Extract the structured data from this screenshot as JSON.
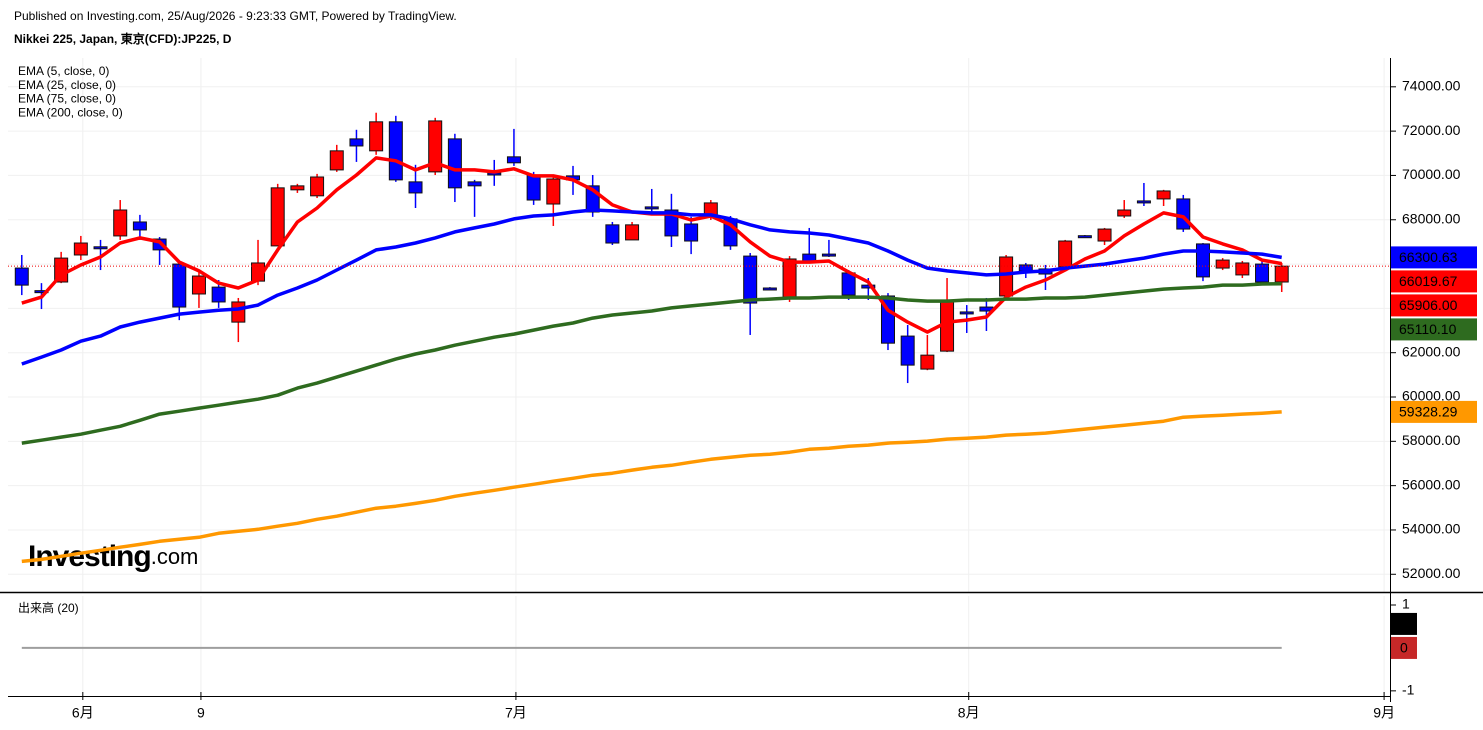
{
  "chart_data": {
    "type": "candlestick",
    "subtitle": "Published on Investing.com, 25/Aug/2026 - 9:23:33 GMT, Powered by TradingView.",
    "title": "Nikkei 225, Japan, 東京(CFD):JP225, D",
    "up_color": "#ff0000",
    "down_color": "#0000ff",
    "open": [
      65820,
      64800,
      65190,
      66410,
      66780,
      67270,
      67900,
      67130,
      66000,
      64650,
      64960,
      63380,
      65230,
      66820,
      69350,
      69080,
      70250,
      71650,
      71110,
      72420,
      69710,
      70160,
      71650,
      69710,
      70110,
      70840,
      70020,
      68710,
      69980,
      69530,
      67770,
      67090,
      68580,
      68440,
      67810,
      68130,
      68040,
      66360,
      64920,
      64510,
      66450,
      66450,
      65600,
      65050,
      64560,
      62750,
      61260,
      62070,
      63840,
      64060,
      64560,
      65960,
      65780,
      65870,
      67280,
      67040,
      68170,
      68850,
      68940,
      68940,
      66910,
      65820,
      65510,
      66000,
      65190
    ],
    "high": [
      66410,
      65140,
      66550,
      67270,
      67090,
      68890,
      68220,
      67220,
      66090,
      65640,
      65280,
      64470,
      67090,
      69620,
      69620,
      70070,
      71380,
      72060,
      72830,
      72690,
      70480,
      72600,
      71880,
      69800,
      70700,
      72100,
      70160,
      70020,
      70430,
      70020,
      67900,
      67900,
      69390,
      69170,
      68130,
      68890,
      68170,
      66500,
      64960,
      66360,
      67630,
      67090,
      65730,
      65370,
      64690,
      63250,
      62800,
      65370,
      64150,
      64470,
      66410,
      66050,
      65960,
      67090,
      67310,
      67630,
      68890,
      69660,
      69350,
      69120,
      66950,
      66270,
      66140,
      66230,
      66050
    ],
    "low": [
      64600,
      63970,
      65140,
      66180,
      65730,
      67090,
      67090,
      65960,
      63470,
      64020,
      64020,
      62480,
      65050,
      66820,
      69210,
      68980,
      70160,
      70610,
      70930,
      69710,
      68530,
      70020,
      68800,
      68130,
      69530,
      70430,
      68670,
      67720,
      69120,
      68130,
      66860,
      67090,
      68350,
      66770,
      66450,
      67990,
      66640,
      62800,
      64870,
      64290,
      66050,
      66320,
      64380,
      64380,
      62120,
      60630,
      61210,
      62030,
      62890,
      62980,
      64470,
      65370,
      64830,
      65730,
      67220,
      66860,
      68080,
      68620,
      68620,
      67450,
      65230,
      65730,
      65370,
      65100,
      64740
    ],
    "close": [
      65050,
      64780,
      66270,
      66950,
      66760,
      68440,
      67540,
      66640,
      64060,
      65460,
      64290,
      64290,
      66050,
      69440,
      69530,
      69930,
      71110,
      71330,
      72420,
      69800,
      69210,
      72460,
      69440,
      69530,
      70090,
      70570,
      68890,
      69840,
      69800,
      68350,
      66950,
      67770,
      68560,
      67270,
      67040,
      68760,
      66820,
      64240,
      64900,
      66230,
      66090,
      66430,
      64600,
      64920,
      62430,
      61440,
      61890,
      64380,
      63820,
      63880,
      66320,
      65690,
      65550,
      67040,
      67260,
      67580,
      68440,
      68830,
      69300,
      67580,
      65420,
      66180,
      66050,
      65190,
      65906
    ],
    "close_label": "65906.00",
    "overlays": [
      {
        "name": "EMA (5, close, 0)",
        "color": "#ff0000",
        "last_label": "66019.67",
        "values": [
          64240,
          64510,
          65510,
          65960,
          66320,
          66950,
          67180,
          67000,
          66090,
          65690,
          65140,
          64920,
          65280,
          66640,
          67900,
          68530,
          69350,
          70020,
          70790,
          70660,
          70250,
          70570,
          70250,
          70250,
          70160,
          70300,
          69980,
          69980,
          69800,
          69350,
          68670,
          68350,
          68260,
          68260,
          67990,
          68170,
          67770,
          67000,
          66360,
          66090,
          66090,
          66140,
          65640,
          65190,
          63920,
          63380,
          62930,
          63380,
          63470,
          63610,
          64510,
          64960,
          65280,
          65730,
          66230,
          66590,
          67270,
          67810,
          68310,
          68130,
          67220,
          66910,
          66640,
          66180,
          66019.67
        ]
      },
      {
        "name": "EMA (25, close, 0)",
        "color": "#0000ff",
        "last_label": "66300.63",
        "values": [
          61490,
          61800,
          62120,
          62520,
          62750,
          63160,
          63380,
          63560,
          63740,
          63830,
          63920,
          63970,
          64150,
          64600,
          64920,
          65280,
          65730,
          66180,
          66640,
          66770,
          66950,
          67180,
          67450,
          67630,
          67810,
          68040,
          68170,
          68220,
          68350,
          68440,
          68400,
          68350,
          68310,
          68310,
          68220,
          68220,
          68040,
          67770,
          67540,
          67450,
          67400,
          67310,
          67130,
          66950,
          66590,
          66180,
          65820,
          65690,
          65600,
          65510,
          65550,
          65640,
          65690,
          65820,
          65910,
          66000,
          66140,
          66270,
          66450,
          66590,
          66590,
          66550,
          66500,
          66450,
          66300.63
        ]
      },
      {
        "name": "EMA (75, close, 0)",
        "color": "#2e6b1f",
        "last_label": "65110.10",
        "values": [
          57920,
          58050,
          58190,
          58320,
          58500,
          58680,
          58950,
          59230,
          59360,
          59500,
          59630,
          59770,
          59900,
          60080,
          60400,
          60630,
          60900,
          61170,
          61440,
          61710,
          61940,
          62120,
          62340,
          62520,
          62700,
          62840,
          63020,
          63200,
          63340,
          63560,
          63700,
          63790,
          63880,
          64020,
          64110,
          64200,
          64290,
          64380,
          64420,
          64470,
          64470,
          64510,
          64510,
          64510,
          64470,
          64380,
          64330,
          64330,
          64380,
          64380,
          64420,
          64420,
          64470,
          64470,
          64510,
          64600,
          64690,
          64780,
          64870,
          64920,
          64960,
          65050,
          65050,
          65100,
          65110.1
        ]
      },
      {
        "name": "EMA (200, close, 0)",
        "color": "#ff9800",
        "last_label": "59328.29",
        "values": [
          52580,
          52670,
          52810,
          52950,
          53080,
          53220,
          53350,
          53490,
          53580,
          53670,
          53850,
          53940,
          54030,
          54170,
          54300,
          54480,
          54620,
          54800,
          54980,
          55070,
          55200,
          55340,
          55520,
          55660,
          55790,
          55930,
          56060,
          56200,
          56330,
          56470,
          56560,
          56700,
          56830,
          56920,
          57060,
          57190,
          57280,
          57370,
          57420,
          57510,
          57640,
          57690,
          57780,
          57830,
          57920,
          57960,
          58010,
          58100,
          58140,
          58190,
          58280,
          58320,
          58370,
          58460,
          58550,
          58640,
          58730,
          58820,
          58910,
          59090,
          59140,
          59180,
          59230,
          59270,
          59328.29
        ]
      }
    ],
    "ylim": [
      51200,
      75300
    ],
    "yticks": [
      {
        "value": 52000,
        "label": "52000.00"
      },
      {
        "value": 54000,
        "label": "54000.00"
      },
      {
        "value": 56000,
        "label": "56000.00"
      },
      {
        "value": 58000,
        "label": "58000.00"
      },
      {
        "value": 60000,
        "label": "60000.00"
      },
      {
        "value": 62000,
        "label": "62000.00"
      },
      {
        "value": 64000,
        "label": "64000.00"
      },
      {
        "value": 66000,
        "label": "66000.00"
      },
      {
        "value": 68000,
        "label": "68000.00"
      },
      {
        "value": 70000,
        "label": "70000.00"
      },
      {
        "value": 72000,
        "label": "72000.00"
      },
      {
        "value": 74000,
        "label": "74000.00"
      }
    ],
    "xlim": [
      -0.7,
      69.5
    ],
    "xticks": [
      {
        "value": 3.1,
        "label": "6月"
      },
      {
        "value": 9.1,
        "label": "9"
      },
      {
        "value": 25.1,
        "label": "7月"
      },
      {
        "value": 48.1,
        "label": "8月"
      },
      {
        "value": 69.2,
        "label": "9月"
      }
    ],
    "grid": true,
    "watermark": {
      "brand": "Investing",
      "suffix": ".com"
    },
    "volume": {
      "title": "出来高 (20)",
      "color": "#9e9e9e",
      "values": [
        0,
        0,
        0,
        0,
        0,
        0,
        0,
        0,
        0,
        0,
        0,
        0,
        0,
        0,
        0,
        0,
        0,
        0,
        0,
        0,
        0,
        0,
        0,
        0,
        0,
        0,
        0,
        0,
        0,
        0,
        0,
        0,
        0,
        0,
        0,
        0,
        0,
        0,
        0,
        0,
        0,
        0,
        0,
        0,
        0,
        0,
        0,
        0,
        0,
        0,
        0,
        0,
        0,
        0,
        0,
        0,
        0,
        0,
        0,
        0,
        0,
        0,
        0,
        0,
        0
      ],
      "last": [
        0,
        0
      ],
      "last_colors": [
        "#000000",
        "#c62828"
      ],
      "ylim": [
        -1.12,
        1.21
      ],
      "yticks": [
        1,
        0,
        -1
      ]
    }
  }
}
